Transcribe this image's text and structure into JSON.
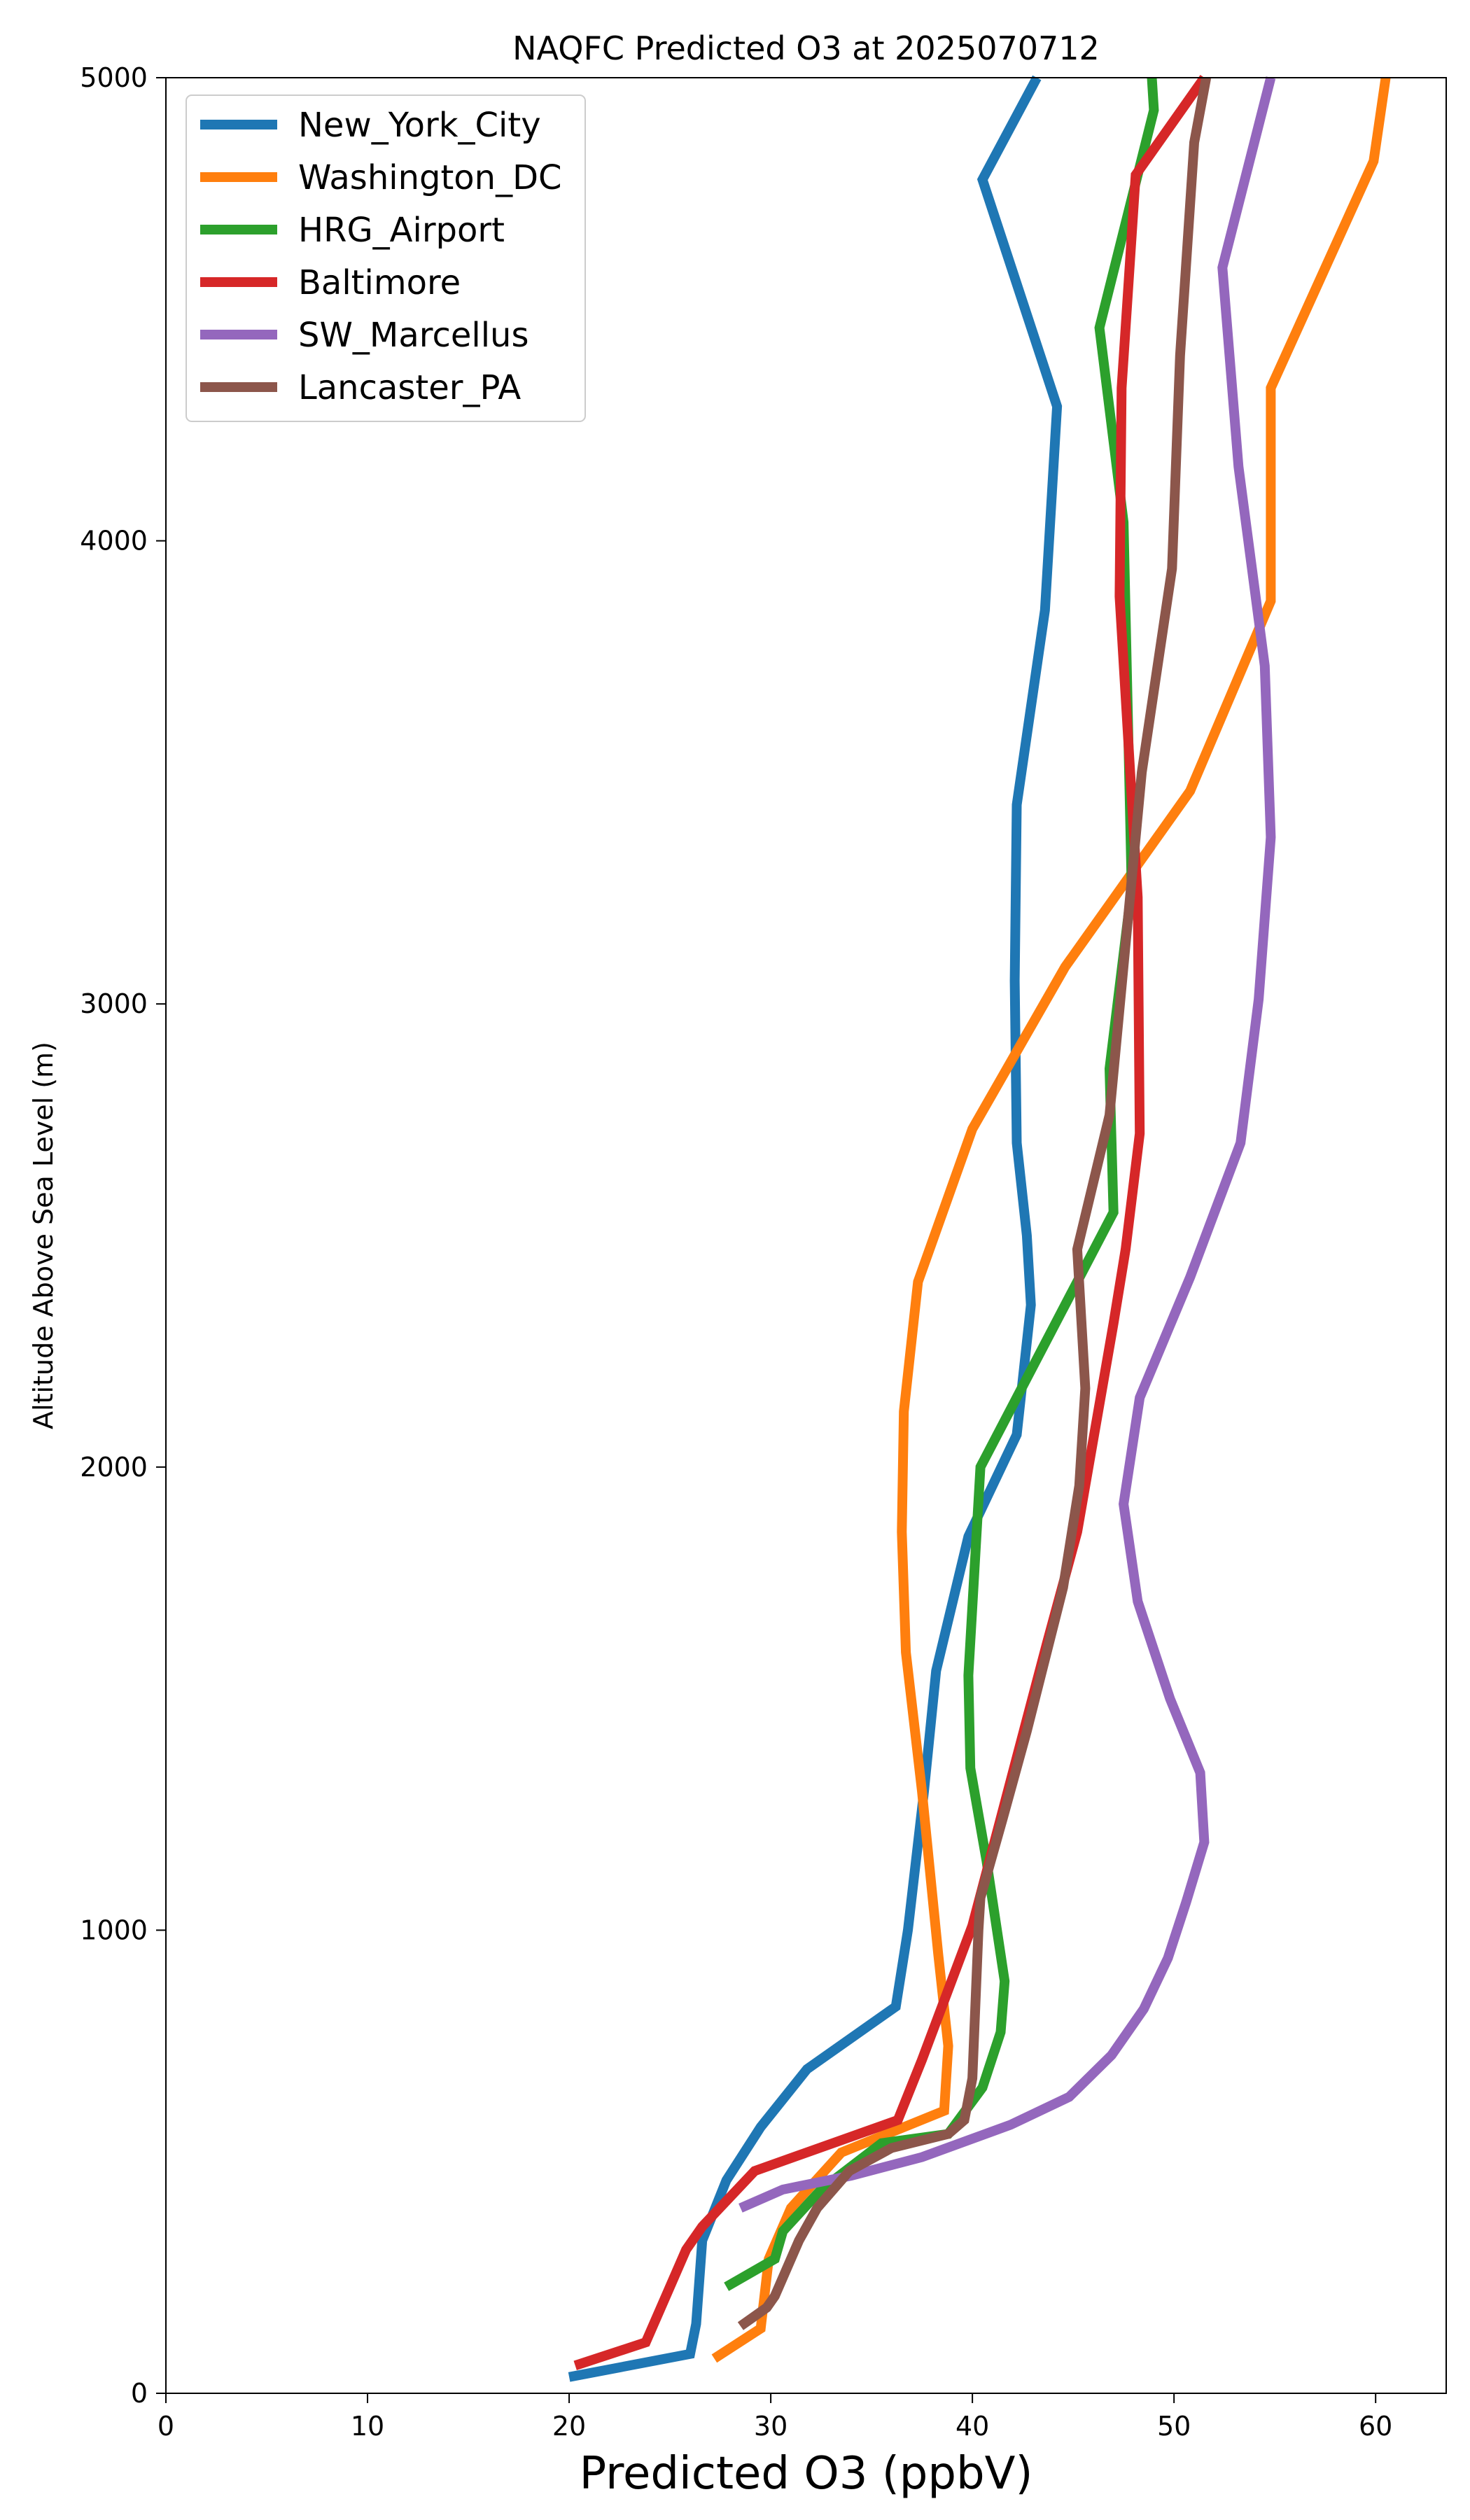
{
  "chart_data": {
    "type": "line",
    "title": "NAQFC Predicted O3 at 2025070712",
    "xlabel": "Predicted O3 (ppbV)",
    "ylabel": "Altitude Above Sea Level (m)",
    "xlim": [
      0,
      63.5
    ],
    "ylim": [
      0,
      5000
    ],
    "xticks": [
      0,
      10,
      20,
      30,
      40,
      50,
      60
    ],
    "yticks": [
      0,
      1000,
      2000,
      3000,
      4000,
      5000
    ],
    "grid": false,
    "legend_position": "top-left",
    "series": [
      {
        "name": "New_York_City",
        "color": "#1f77b4",
        "points": [
          [
            20.0,
            35
          ],
          [
            26.0,
            85
          ],
          [
            26.3,
            150
          ],
          [
            26.6,
            330
          ],
          [
            27.8,
            460
          ],
          [
            29.5,
            575
          ],
          [
            31.8,
            700
          ],
          [
            36.2,
            835
          ],
          [
            36.8,
            1000
          ],
          [
            37.6,
            1300
          ],
          [
            38.2,
            1560
          ],
          [
            39.8,
            1850
          ],
          [
            42.2,
            2070
          ],
          [
            42.9,
            2350
          ],
          [
            42.7,
            2500
          ],
          [
            42.2,
            2700
          ],
          [
            42.1,
            3050
          ],
          [
            42.2,
            3430
          ],
          [
            43.6,
            3850
          ],
          [
            44.2,
            4290
          ],
          [
            40.5,
            4780
          ],
          [
            43.2,
            5000
          ]
        ]
      },
      {
        "name": "Washington_DC",
        "color": "#ff7f0e",
        "points": [
          [
            27.2,
            75
          ],
          [
            29.5,
            140
          ],
          [
            29.9,
            290
          ],
          [
            31.0,
            400
          ],
          [
            33.5,
            520
          ],
          [
            38.6,
            610
          ],
          [
            38.8,
            750
          ],
          [
            38.3,
            950
          ],
          [
            37.5,
            1300
          ],
          [
            36.7,
            1600
          ],
          [
            36.5,
            1860
          ],
          [
            36.6,
            2120
          ],
          [
            37.3,
            2400
          ],
          [
            40.0,
            2730
          ],
          [
            44.6,
            3080
          ],
          [
            50.8,
            3460
          ],
          [
            54.8,
            3870
          ],
          [
            54.8,
            4330
          ],
          [
            59.9,
            4820
          ],
          [
            60.5,
            5000
          ]
        ]
      },
      {
        "name": "HRG_Airport",
        "color": "#2ca02c",
        "points": [
          [
            27.8,
            230
          ],
          [
            30.2,
            290
          ],
          [
            30.6,
            350
          ],
          [
            32.5,
            440
          ],
          [
            35.5,
            540
          ],
          [
            38.8,
            560
          ],
          [
            40.5,
            660
          ],
          [
            41.4,
            780
          ],
          [
            41.6,
            890
          ],
          [
            40.7,
            1150
          ],
          [
            39.9,
            1350
          ],
          [
            39.8,
            1550
          ],
          [
            40.4,
            2000
          ],
          [
            47.0,
            2550
          ],
          [
            46.8,
            2860
          ],
          [
            47.9,
            3250
          ],
          [
            47.5,
            4040
          ],
          [
            46.3,
            4460
          ],
          [
            49.0,
            4930
          ],
          [
            48.9,
            5000
          ]
        ]
      },
      {
        "name": "Baltimore",
        "color": "#d62728",
        "points": [
          [
            20.3,
            60
          ],
          [
            23.8,
            110
          ],
          [
            25.0,
            230
          ],
          [
            25.8,
            310
          ],
          [
            26.6,
            360
          ],
          [
            29.2,
            480
          ],
          [
            36.3,
            590
          ],
          [
            37.5,
            720
          ],
          [
            40.0,
            1010
          ],
          [
            43.7,
            1620
          ],
          [
            45.2,
            1860
          ],
          [
            47.0,
            2310
          ],
          [
            47.6,
            2470
          ],
          [
            48.3,
            2720
          ],
          [
            48.2,
            3230
          ],
          [
            47.3,
            3880
          ],
          [
            47.4,
            4330
          ],
          [
            48.1,
            4790
          ],
          [
            51.5,
            5000
          ]
        ]
      },
      {
        "name": "SW_Marcellus",
        "color": "#9467bd",
        "points": [
          [
            28.5,
            400
          ],
          [
            30.6,
            440
          ],
          [
            34.0,
            470
          ],
          [
            37.5,
            510
          ],
          [
            41.9,
            580
          ],
          [
            44.8,
            640
          ],
          [
            46.9,
            730
          ],
          [
            48.5,
            830
          ],
          [
            49.7,
            940
          ],
          [
            50.6,
            1060
          ],
          [
            51.5,
            1190
          ],
          [
            51.3,
            1340
          ],
          [
            49.8,
            1500
          ],
          [
            48.2,
            1710
          ],
          [
            47.5,
            1920
          ],
          [
            48.3,
            2150
          ],
          [
            50.8,
            2410
          ],
          [
            53.3,
            2700
          ],
          [
            54.2,
            3010
          ],
          [
            54.8,
            3360
          ],
          [
            54.5,
            3730
          ],
          [
            53.2,
            4160
          ],
          [
            52.4,
            4590
          ],
          [
            54.8,
            5000
          ]
        ]
      },
      {
        "name": "Lancaster_PA",
        "color": "#8c564b",
        "points": [
          [
            28.5,
            145
          ],
          [
            29.8,
            185
          ],
          [
            30.2,
            210
          ],
          [
            31.4,
            330
          ],
          [
            32.3,
            400
          ],
          [
            33.9,
            480
          ],
          [
            36.0,
            530
          ],
          [
            38.8,
            560
          ],
          [
            39.6,
            590
          ],
          [
            40.0,
            680
          ],
          [
            40.3,
            1000
          ],
          [
            40.4,
            1070
          ],
          [
            41.5,
            1240
          ],
          [
            42.7,
            1430
          ],
          [
            44.5,
            1740
          ],
          [
            45.3,
            1960
          ],
          [
            45.6,
            2170
          ],
          [
            45.2,
            2470
          ],
          [
            46.8,
            2760
          ],
          [
            48.4,
            3500
          ],
          [
            49.9,
            3940
          ],
          [
            50.3,
            4400
          ],
          [
            51.0,
            4860
          ],
          [
            51.6,
            5000
          ]
        ]
      }
    ]
  }
}
